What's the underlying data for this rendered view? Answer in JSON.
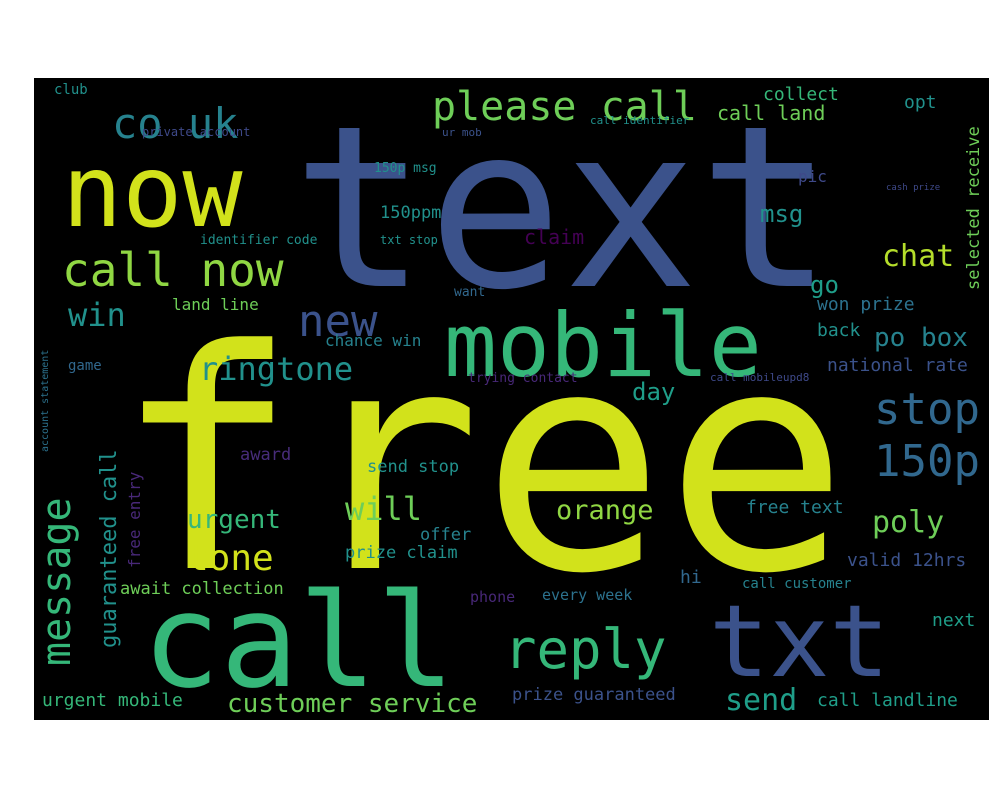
{
  "words": [
    {
      "text": "free",
      "color": "#d2e21b"
    },
    {
      "text": "text",
      "color": "#3b528b"
    },
    {
      "text": "call",
      "color": "#35b779"
    },
    {
      "text": "now",
      "color": "#d2e21b"
    },
    {
      "text": "mobile",
      "color": "#35b779"
    },
    {
      "text": "txt",
      "color": "#3b528b"
    },
    {
      "text": "call now",
      "color": "#90d743"
    },
    {
      "text": "please call",
      "color": "#6ece58"
    },
    {
      "text": "reply",
      "color": "#35b779"
    },
    {
      "text": "co uk",
      "color": "#26828e"
    },
    {
      "text": "stop",
      "color": "#31688e"
    },
    {
      "text": "150p",
      "color": "#31688e"
    },
    {
      "text": "new",
      "color": "#3b528b"
    },
    {
      "text": "ringtone",
      "color": "#21918c"
    },
    {
      "text": "message",
      "color": "#35b779"
    },
    {
      "text": "tone",
      "color": "#d2e21b"
    },
    {
      "text": "chat",
      "color": "#b5de2b"
    },
    {
      "text": "poly",
      "color": "#6ece58"
    },
    {
      "text": "win",
      "color": "#21918c"
    },
    {
      "text": "send",
      "color": "#1f9e89"
    },
    {
      "text": "urgent",
      "color": "#35b779"
    },
    {
      "text": "will",
      "color": "#6ece58"
    },
    {
      "text": "orange",
      "color": "#90d743"
    },
    {
      "text": "customer service",
      "color": "#6ece58"
    },
    {
      "text": "guaranteed call",
      "color": "#21918c"
    },
    {
      "text": "po box",
      "color": "#26828e"
    },
    {
      "text": "msg",
      "color": "#21918c"
    },
    {
      "text": "claim",
      "color": "#440154"
    },
    {
      "text": "go",
      "color": "#1f9e89"
    },
    {
      "text": "day",
      "color": "#1f9e89"
    },
    {
      "text": "call land",
      "color": "#6ece58"
    },
    {
      "text": "collect",
      "color": "#35b779"
    },
    {
      "text": "opt",
      "color": "#21918c"
    },
    {
      "text": "won prize",
      "color": "#2c728e"
    },
    {
      "text": "back",
      "color": "#21918c"
    },
    {
      "text": "national rate",
      "color": "#3b528b"
    },
    {
      "text": "selected receive",
      "color": "#6ece58"
    },
    {
      "text": "free text",
      "color": "#26828e"
    },
    {
      "text": "valid 12hrs",
      "color": "#3b528b"
    },
    {
      "text": "next",
      "color": "#1f9e89"
    },
    {
      "text": "hi",
      "color": "#31688e"
    },
    {
      "text": "call customer",
      "color": "#26828e"
    },
    {
      "text": "call landline",
      "color": "#1f9e89"
    },
    {
      "text": "prize guaranteed",
      "color": "#3b528b"
    },
    {
      "text": "urgent mobile",
      "color": "#35b779"
    },
    {
      "text": "await collection",
      "color": "#6ece58"
    },
    {
      "text": "prize claim",
      "color": "#21918c"
    },
    {
      "text": "offer",
      "color": "#26828e"
    },
    {
      "text": "phone",
      "color": "#482878"
    },
    {
      "text": "every week",
      "color": "#2c728e"
    },
    {
      "text": "send stop",
      "color": "#21918c"
    },
    {
      "text": "award",
      "color": "#472c7a"
    },
    {
      "text": "free entry",
      "color": "#482878"
    },
    {
      "text": "land line",
      "color": "#6ece58"
    },
    {
      "text": "chance win",
      "color": "#26828e"
    },
    {
      "text": "150ppm",
      "color": "#21918c"
    },
    {
      "text": "150p msg",
      "color": "#21918c"
    },
    {
      "text": "pic",
      "color": "#3e4989"
    },
    {
      "text": "want",
      "color": "#31688e"
    },
    {
      "text": "game",
      "color": "#31688e"
    },
    {
      "text": "club",
      "color": "#21918c"
    },
    {
      "text": "identifier code",
      "color": "#21918c"
    },
    {
      "text": "txt stop",
      "color": "#21918c"
    },
    {
      "text": "trying contact",
      "color": "#482878"
    },
    {
      "text": "call mobileupd8",
      "color": "#3e4989"
    },
    {
      "text": "private account",
      "color": "#3e4989"
    },
    {
      "text": "ur mob",
      "color": "#3b528b"
    },
    {
      "text": "call identifier",
      "color": "#21918c"
    },
    {
      "text": "account statement",
      "color": "#2c728e"
    },
    {
      "text": "cash prize",
      "color": "#3e4989"
    }
  ]
}
